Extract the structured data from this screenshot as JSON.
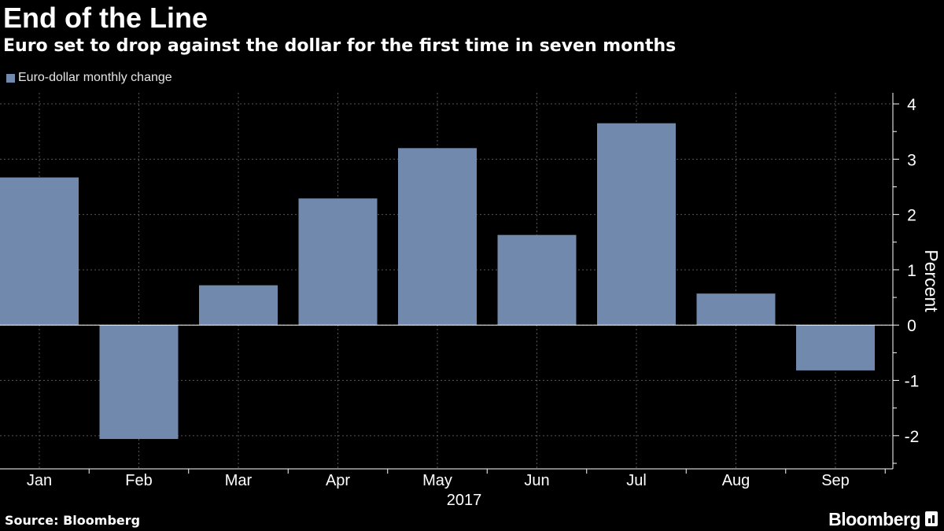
{
  "colors": {
    "background": "#000000",
    "bar": "#7189AC",
    "grid": "#555555",
    "axis": "#FFFFFF",
    "text": "#FFFFFF"
  },
  "source": "Source: Bloomberg",
  "brand": "Bloomberg",
  "brand_icon": "bloomberg-logo-icon",
  "chart_data": {
    "type": "bar",
    "title": "End of the Line",
    "subtitle": "Euro set to drop against the dollar for the first time in seven months",
    "categories": [
      "Jan",
      "Feb",
      "Mar",
      "Apr",
      "May",
      "Jun",
      "Jul",
      "Aug",
      "Sep"
    ],
    "series": [
      {
        "name": "Euro-dollar monthly change",
        "values": [
          2.67,
          -2.06,
          0.72,
          2.29,
          3.2,
          1.63,
          3.65,
          0.57,
          -0.82
        ]
      }
    ],
    "xlabel": "2017",
    "ylabel": "Percent",
    "ylim": [
      -2.6,
      4.2
    ],
    "yticks": [
      "-2",
      "-1",
      "0",
      "1",
      "2",
      "3",
      "4"
    ],
    "ytick_values": [
      -2,
      -1,
      0,
      1,
      2,
      3,
      4
    ],
    "grid": true,
    "legend": "top-left"
  }
}
